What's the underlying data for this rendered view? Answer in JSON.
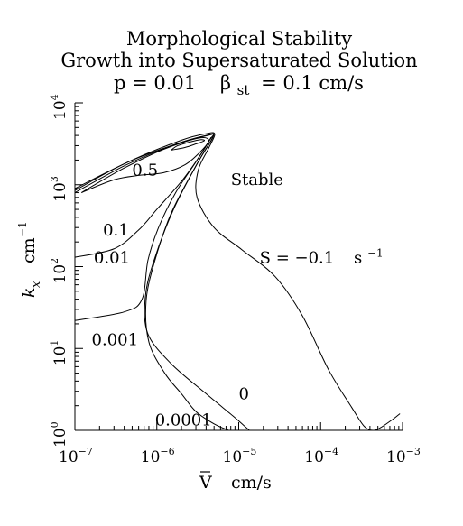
{
  "chart_data": {
    "type": "line",
    "title_lines": [
      "Morphological Stability",
      "Growth into Supersaturated Solution"
    ],
    "subtitle": {
      "p_text": "p = 0.01",
      "beta_symbol": "β",
      "beta_subscript": "st",
      "beta_value": "= 0.1 cm/s"
    },
    "xlabel": {
      "symbol": "V",
      "unit": "cm/s"
    },
    "ylabel": {
      "symbol": "k",
      "subscript": "x",
      "unit": "cm",
      "unit_exp": "−1"
    },
    "x_scale": "log",
    "y_scale": "log",
    "xlim": [
      1e-07,
      0.001
    ],
    "ylim": [
      1,
      10000
    ],
    "x_ticks": [
      {
        "value": 1e-07,
        "base": "10",
        "exp": "−7"
      },
      {
        "value": 1e-06,
        "base": "10",
        "exp": "−6"
      },
      {
        "value": 1e-05,
        "base": "10",
        "exp": "−5"
      },
      {
        "value": 0.0001,
        "base": "10",
        "exp": "−4"
      },
      {
        "value": 0.001,
        "base": "10",
        "exp": "−3"
      }
    ],
    "y_ticks": [
      {
        "value": 1,
        "base": "10",
        "exp": "0"
      },
      {
        "value": 10,
        "base": "10",
        "exp": "1"
      },
      {
        "value": 100,
        "base": "10",
        "exp": "2"
      },
      {
        "value": 1000,
        "base": "10",
        "exp": "3"
      },
      {
        "value": 10000,
        "base": "10",
        "exp": "4"
      }
    ],
    "grid": false,
    "series": [
      {
        "name": "S = −0.1 s−1",
        "points": [
          [
            1e-07,
            900
          ],
          [
            5e-07,
            2000
          ],
          [
            2e-06,
            3500
          ],
          [
            4e-06,
            4200
          ],
          [
            5.1e-06,
            4150
          ],
          [
            4.3e-06,
            2800
          ],
          [
            3.2e-06,
            1500
          ],
          [
            3.1e-06,
            700
          ],
          [
            5e-06,
            300
          ],
          [
            1.1e-05,
            160
          ],
          [
            2.8e-05,
            75
          ],
          [
            6e-05,
            25
          ],
          [
            0.000125,
            5.5
          ],
          [
            0.00024,
            1.9
          ],
          [
            0.00034,
            1.12
          ],
          [
            0.00044,
            1.0
          ],
          [
            0.00054,
            1.08
          ],
          [
            0.00075,
            1.35
          ],
          [
            0.00093,
            1.6
          ]
        ]
      },
      {
        "name": "0",
        "points": [
          [
            1e-07,
            800
          ],
          [
            4e-07,
            1700
          ],
          [
            1.5e-06,
            3000
          ],
          [
            4e-06,
            4000
          ],
          [
            4.9e-06,
            3900
          ],
          [
            3.2e-06,
            1900
          ],
          [
            1.6e-06,
            500
          ],
          [
            9e-07,
            110
          ],
          [
            7.2e-07,
            40
          ],
          [
            7.8e-07,
            15
          ],
          [
            1.5e-06,
            6.5
          ],
          [
            4e-06,
            2.8
          ],
          [
            8.5e-06,
            1.5
          ],
          [
            1.15e-05,
            1.15
          ],
          [
            1.35e-05,
            1.0
          ]
        ]
      },
      {
        "name": "0.0001",
        "points": [
          [
            1e-07,
            850
          ],
          [
            4e-07,
            1800
          ],
          [
            1.5e-06,
            3000
          ],
          [
            4.2e-06,
            4000
          ],
          [
            4.8e-06,
            3800
          ],
          [
            3e-06,
            1700
          ],
          [
            1.5e-06,
            450
          ],
          [
            9.5e-07,
            120
          ],
          [
            7.4e-07,
            38
          ],
          [
            8e-07,
            12
          ],
          [
            1.25e-06,
            5
          ],
          [
            2e-06,
            2.8
          ],
          [
            3e-06,
            1.7
          ],
          [
            5e-06,
            1.2
          ],
          [
            7.5e-06,
            1.0
          ]
        ]
      },
      {
        "name": "0.001",
        "points": [
          [
            1e-07,
            22
          ],
          [
            4e-07,
            28
          ],
          [
            6.6e-07,
            40
          ],
          [
            7.8e-07,
            120
          ],
          [
            1.05e-06,
            300
          ],
          [
            1.7e-06,
            800
          ],
          [
            3e-06,
            1900
          ],
          [
            4.5e-06,
            3600
          ],
          [
            4.9e-06,
            4000
          ]
        ]
      },
      {
        "name": "0.01",
        "points": [
          [
            1e-07,
            130
          ],
          [
            3e-07,
            165
          ],
          [
            6e-07,
            280
          ],
          [
            1e-06,
            500
          ],
          [
            2e-06,
            1100
          ],
          [
            3.5e-06,
            2400
          ],
          [
            4.6e-06,
            3800
          ]
        ]
      },
      {
        "name": "0.1",
        "points": [
          [
            1.2e-07,
            800
          ],
          [
            3e-07,
            1150
          ],
          [
            6e-07,
            1300
          ],
          [
            1.2e-06,
            1400
          ],
          [
            2.2e-06,
            1750
          ],
          [
            3.5e-06,
            2600
          ],
          [
            4.3e-06,
            3500
          ],
          [
            3.2e-06,
            3700
          ],
          [
            1.2e-06,
            2700
          ],
          [
            4e-07,
            1600
          ],
          [
            1.6e-07,
            950
          ],
          [
            1.2e-07,
            800
          ]
        ]
      },
      {
        "name": "0.5",
        "points": [
          [
            1.5e-06,
            2650
          ],
          [
            2.2e-06,
            2850
          ],
          [
            3e-06,
            3150
          ],
          [
            3.8e-06,
            3450
          ],
          [
            3.4e-06,
            3550
          ],
          [
            2.6e-06,
            3350
          ],
          [
            1.8e-06,
            3000
          ],
          [
            1.5e-06,
            2650
          ]
        ]
      }
    ],
    "curve_labels": [
      {
        "text": "Stable",
        "x": 8e-06,
        "y": 1000
      },
      {
        "text": "0.5",
        "x": 5e-07,
        "y": 1300
      },
      {
        "text": "0.1",
        "x": 2.2e-07,
        "y": 240
      },
      {
        "text": "0.01",
        "x": 1.7e-07,
        "y": 110
      },
      {
        "text": "0.001",
        "x": 1.6e-07,
        "y": 11
      },
      {
        "text": "0.0001",
        "x": 9.5e-07,
        "y": 1.15
      },
      {
        "text": "0",
        "x": 1e-05,
        "y": 2.4
      }
    ],
    "s_label": {
      "prefix": "S = −0.1",
      "unit": "s",
      "unit_exp": "−1",
      "x": 1.8e-05,
      "y": 110
    }
  }
}
